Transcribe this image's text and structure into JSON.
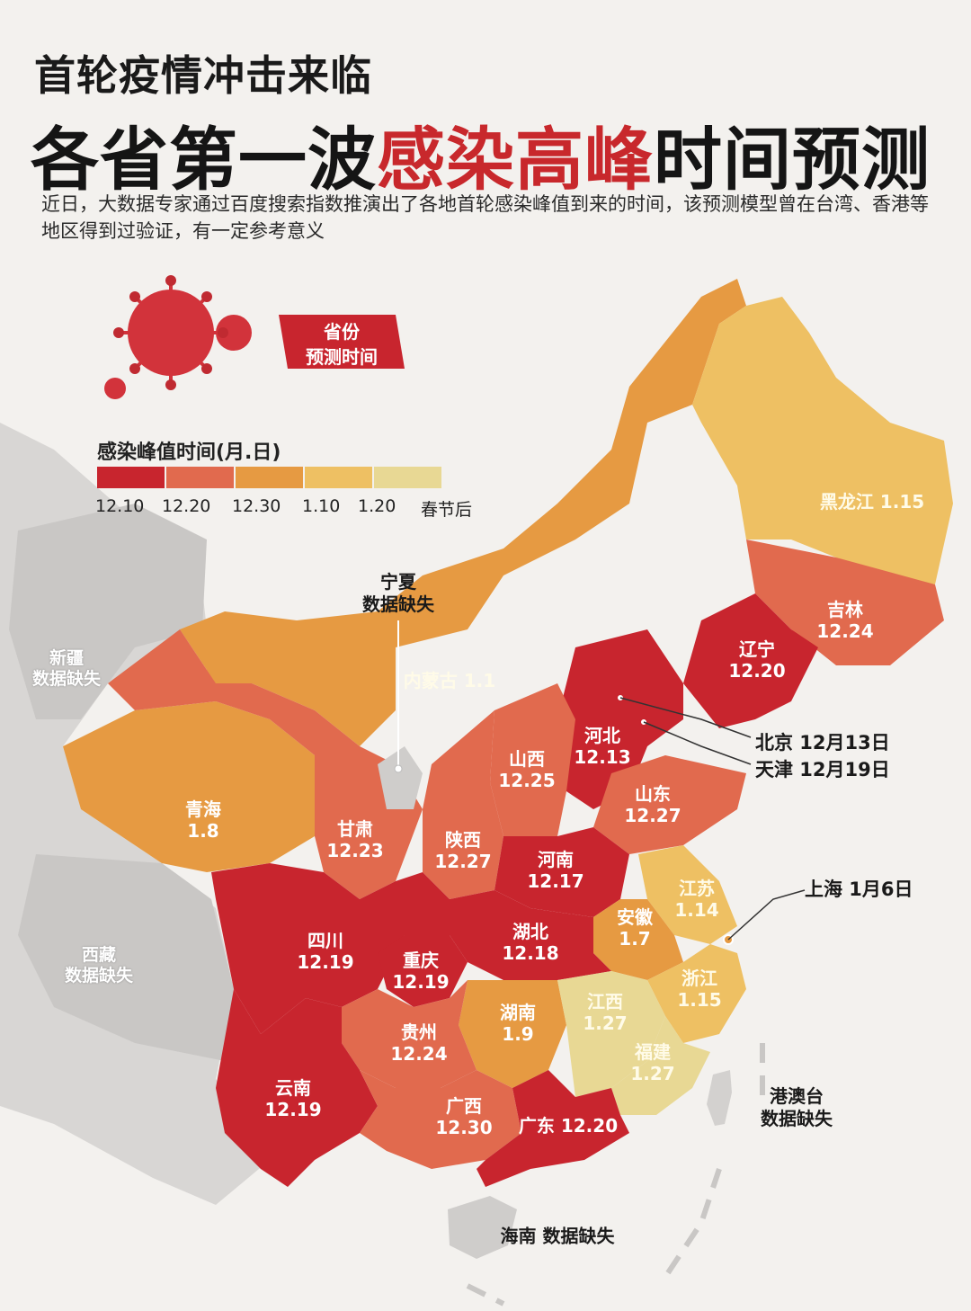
{
  "header": {
    "title_line1": "首轮疫情冲击来临",
    "title_line2_a": "各省第一波",
    "title_line2_b": "感染高峰",
    "title_line2_c": "时间预测",
    "intro": "近日，大数据专家通过百度搜索指数推演出了各地首轮感染峰值到来的时间，该预测模型曾在台湾、香港等地区得到过验证，有一定参考意义"
  },
  "badge": {
    "line1": "省份",
    "line2": "预测时间",
    "icon": "virus-icon"
  },
  "legend": {
    "title": "感染峰值时间(月.日)",
    "items": [
      {
        "label": "12.10",
        "color": "#c8252e"
      },
      {
        "label": "12.20",
        "color": "#e16a4e"
      },
      {
        "label": "12.30",
        "color": "#e69a42"
      },
      {
        "label": "1.10",
        "color": "#eec063"
      },
      {
        "label": "1.20",
        "color": "#e8d894"
      },
      {
        "label": "春节后",
        "color": ""
      }
    ]
  },
  "provinces": [
    {
      "name": "黑龙江",
      "value": "1.15",
      "color": "#eec063"
    },
    {
      "name": "吉林",
      "value": "12.24",
      "color": "#e16a4e"
    },
    {
      "name": "辽宁",
      "value": "12.20",
      "color": "#c8252e"
    },
    {
      "name": "内蒙古",
      "value": "1.1",
      "color": "#e69a42"
    },
    {
      "name": "河北",
      "value": "12.13",
      "color": "#c8252e"
    },
    {
      "name": "山西",
      "value": "12.25",
      "color": "#e16a4e"
    },
    {
      "name": "山东",
      "value": "12.27",
      "color": "#e16a4e"
    },
    {
      "name": "青海",
      "value": "1.8",
      "color": "#e69a42"
    },
    {
      "name": "甘肃",
      "value": "12.23",
      "color": "#e16a4e"
    },
    {
      "name": "陕西",
      "value": "12.27",
      "color": "#e16a4e"
    },
    {
      "name": "河南",
      "value": "12.17",
      "color": "#c8252e"
    },
    {
      "name": "江苏",
      "value": "1.14",
      "color": "#eec063"
    },
    {
      "name": "安徽",
      "value": "1.7",
      "color": "#e69a42"
    },
    {
      "name": "湖北",
      "value": "12.18",
      "color": "#c8252e"
    },
    {
      "name": "四川",
      "value": "12.19",
      "color": "#c8252e"
    },
    {
      "name": "重庆",
      "value": "12.19",
      "color": "#c8252e"
    },
    {
      "name": "浙江",
      "value": "1.15",
      "color": "#eec063"
    },
    {
      "name": "湖南",
      "value": "1.9",
      "color": "#e69a42"
    },
    {
      "name": "江西",
      "value": "1.27",
      "color": "#e8d894"
    },
    {
      "name": "贵州",
      "value": "12.24",
      "color": "#e16a4e"
    },
    {
      "name": "福建",
      "value": "1.27",
      "color": "#e8d894"
    },
    {
      "name": "云南",
      "value": "12.19",
      "color": "#c8252e"
    },
    {
      "name": "广西",
      "value": "12.30",
      "color": "#e16a4e"
    },
    {
      "name": "广东",
      "value": "12.20",
      "color": "#c8252e"
    }
  ],
  "missing": {
    "xinjiang": {
      "name": "新疆",
      "note": "数据缺失"
    },
    "xizang": {
      "name": "西藏",
      "note": "数据缺失"
    },
    "ningxia": {
      "name": "宁夏",
      "note": "数据缺失"
    },
    "gangaotai": {
      "name": "港澳台",
      "note": "数据缺失"
    },
    "hainan": {
      "name": "海南",
      "note": "数据缺失"
    }
  },
  "callouts": {
    "beijing": "北京 12月13日",
    "tianjin": "天津 12月19日",
    "shanghai": "上海 1月6日"
  }
}
